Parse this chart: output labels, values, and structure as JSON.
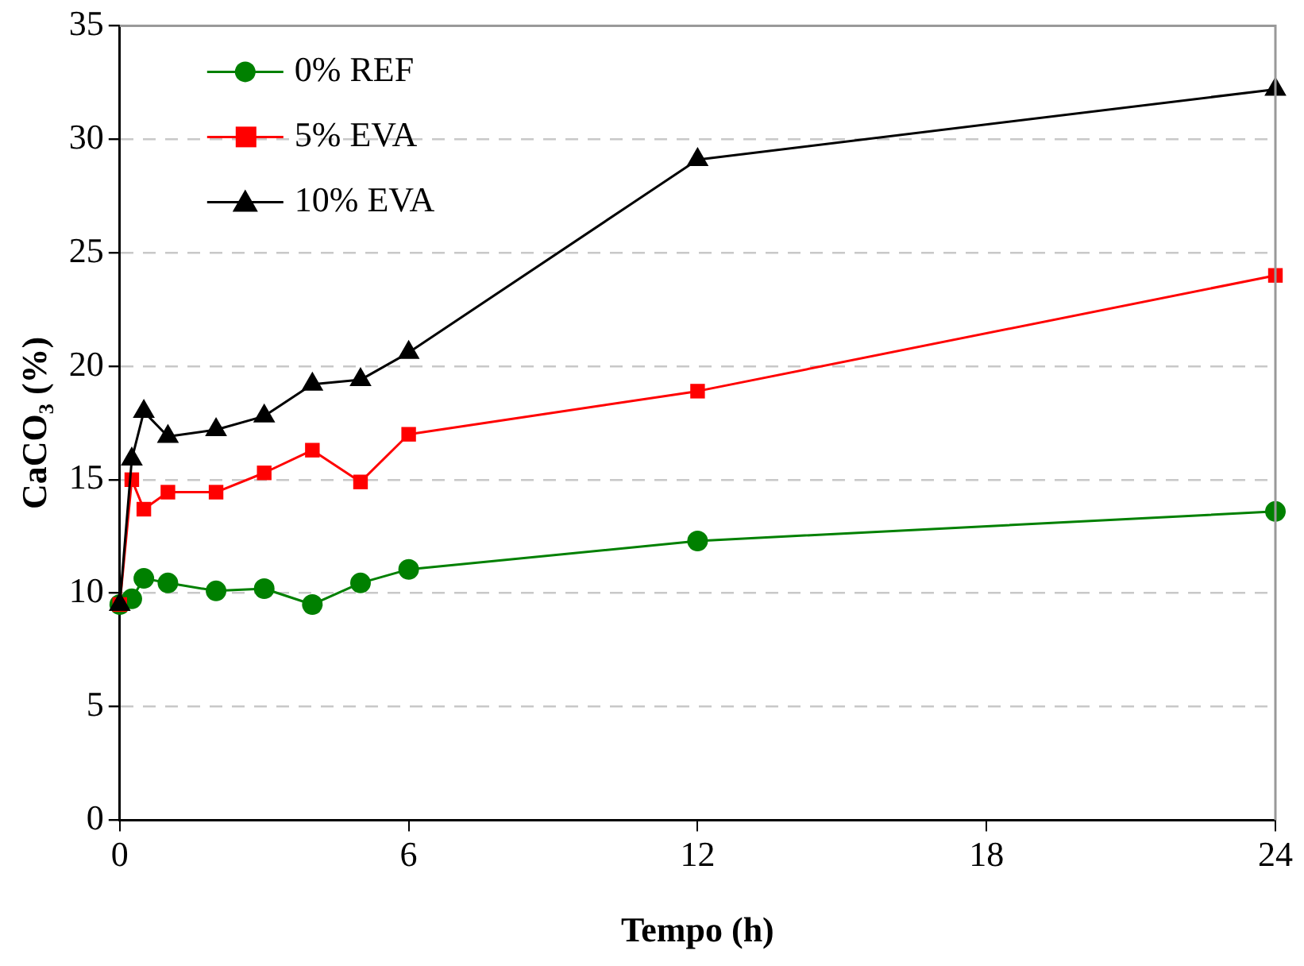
{
  "chart_data": {
    "type": "line",
    "xlabel": "Tempo (h)",
    "ylabel": "CaCO₃ (%)",
    "x": [
      0,
      0.25,
      0.5,
      1,
      2,
      3,
      4,
      5,
      6,
      12,
      24
    ],
    "series": [
      {
        "name": "0% REF",
        "color": "#008000",
        "marker": "circle",
        "values": [
          9.5,
          9.75,
          10.65,
          10.45,
          10.1,
          10.2,
          9.5,
          10.45,
          11.05,
          12.3,
          13.6
        ]
      },
      {
        "name": "5% EVA",
        "color": "#ff0000",
        "marker": "square",
        "values": [
          9.5,
          15.0,
          13.7,
          14.45,
          14.45,
          15.3,
          16.3,
          14.9,
          17.0,
          18.9,
          24.0
        ]
      },
      {
        "name": "10% EVA",
        "color": "#000000",
        "marker": "triangle",
        "values": [
          9.5,
          15.9,
          18.0,
          16.9,
          17.2,
          17.8,
          19.2,
          19.4,
          20.6,
          29.1,
          32.2
        ]
      }
    ],
    "xlim": [
      0,
      24
    ],
    "xticks": [
      0,
      6,
      12,
      18,
      24
    ],
    "ylim": [
      0,
      35
    ],
    "yticks": [
      0,
      5,
      10,
      15,
      20,
      25,
      30,
      35
    ],
    "grid": "y",
    "legend": "top left",
    "line_style": "solid"
  }
}
